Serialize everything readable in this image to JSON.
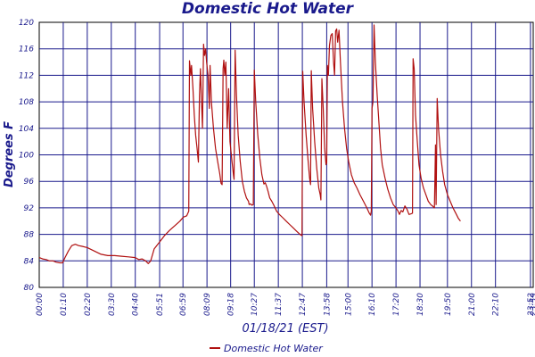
{
  "chart_data": {
    "type": "line",
    "title": "Domestic Hot Water",
    "xlabel": "01/18/21 (EST)",
    "ylabel": "Degrees F",
    "ylim": [
      80,
      120
    ],
    "yticks": [
      80,
      84,
      88,
      92,
      96,
      100,
      104,
      108,
      112,
      116,
      120
    ],
    "xlim": [
      0,
      1440
    ],
    "xticks": [
      {
        "t": 0,
        "label": "00:00"
      },
      {
        "t": 70,
        "label": "01:10"
      },
      {
        "t": 140,
        "label": "02:20"
      },
      {
        "t": 210,
        "label": "03:30"
      },
      {
        "t": 280,
        "label": "04:40"
      },
      {
        "t": 351,
        "label": "05:51"
      },
      {
        "t": 419,
        "label": "06:59"
      },
      {
        "t": 489,
        "label": "08:09"
      },
      {
        "t": 558,
        "label": "09:18"
      },
      {
        "t": 627,
        "label": "10:27"
      },
      {
        "t": 697,
        "label": "11:37"
      },
      {
        "t": 767,
        "label": "12:47"
      },
      {
        "t": 838,
        "label": "13:58"
      },
      {
        "t": 900,
        "label": "15:00"
      },
      {
        "t": 970,
        "label": "16:10"
      },
      {
        "t": 1040,
        "label": "17:20"
      },
      {
        "t": 1110,
        "label": "18:30"
      },
      {
        "t": 1190,
        "label": "19:50"
      },
      {
        "t": 1260,
        "label": "21:00"
      },
      {
        "t": 1330,
        "label": "22:10"
      },
      {
        "t": 1432,
        "label": "23:52"
      },
      {
        "t": 1440,
        "label": "23:59"
      }
    ],
    "grid": true,
    "legend": "bottom-center",
    "series": [
      {
        "name": "Domestic Hot Water",
        "color": "#b01010",
        "points": [
          [
            0,
            84.5
          ],
          [
            10,
            84.3
          ],
          [
            20,
            84.2
          ],
          [
            30,
            84.0
          ],
          [
            40,
            84.0
          ],
          [
            50,
            83.8
          ],
          [
            60,
            83.7
          ],
          [
            68,
            83.7
          ],
          [
            75,
            84.5
          ],
          [
            85,
            85.5
          ],
          [
            95,
            86.3
          ],
          [
            105,
            86.5
          ],
          [
            115,
            86.3
          ],
          [
            125,
            86.2
          ],
          [
            140,
            86.0
          ],
          [
            160,
            85.5
          ],
          [
            180,
            85.0
          ],
          [
            200,
            84.8
          ],
          [
            220,
            84.8
          ],
          [
            240,
            84.7
          ],
          [
            260,
            84.6
          ],
          [
            280,
            84.5
          ],
          [
            290,
            84.2
          ],
          [
            300,
            84.3
          ],
          [
            310,
            84.0
          ],
          [
            318,
            83.6
          ],
          [
            325,
            84.0
          ],
          [
            335,
            85.8
          ],
          [
            350,
            86.8
          ],
          [
            365,
            87.8
          ],
          [
            380,
            88.6
          ],
          [
            395,
            89.3
          ],
          [
            410,
            90.0
          ],
          [
            420,
            90.6
          ],
          [
            430,
            90.8
          ],
          [
            436,
            91.5
          ],
          [
            438,
            114.2
          ],
          [
            442,
            112.0
          ],
          [
            444,
            113.5
          ],
          [
            448,
            110.0
          ],
          [
            452,
            106.0
          ],
          [
            456,
            103.0
          ],
          [
            460,
            101.0
          ],
          [
            464,
            98.9
          ],
          [
            467,
            109.0
          ],
          [
            470,
            113.0
          ],
          [
            473,
            108.0
          ],
          [
            476,
            104.0
          ],
          [
            479,
            116.7
          ],
          [
            482,
            115.0
          ],
          [
            485,
            116.0
          ],
          [
            488,
            114.0
          ],
          [
            492,
            112.0
          ],
          [
            496,
            107.0
          ],
          [
            498,
            113.5
          ],
          [
            502,
            108.0
          ],
          [
            508,
            104.0
          ],
          [
            514,
            101.0
          ],
          [
            520,
            99.0
          ],
          [
            526,
            97.2
          ],
          [
            530,
            95.7
          ],
          [
            533,
            95.5
          ],
          [
            536,
            113.0
          ],
          [
            538,
            114.3
          ],
          [
            541,
            112.0
          ],
          [
            544,
            114.0
          ],
          [
            548,
            104.0
          ],
          [
            552,
            110.0
          ],
          [
            556,
            102.0
          ],
          [
            562,
            99.0
          ],
          [
            566,
            97.0
          ],
          [
            568,
            96.3
          ],
          [
            571,
            115.8
          ],
          [
            575,
            109.0
          ],
          [
            580,
            103.0
          ],
          [
            586,
            99.0
          ],
          [
            592,
            96.0
          ],
          [
            598,
            94.5
          ],
          [
            604,
            93.5
          ],
          [
            610,
            93.0
          ],
          [
            612,
            92.5
          ],
          [
            616,
            92.6
          ],
          [
            620,
            92.4
          ],
          [
            624,
            92.5
          ],
          [
            627,
            112.8
          ],
          [
            631,
            108.0
          ],
          [
            637,
            103.0
          ],
          [
            643,
            99.5
          ],
          [
            649,
            97.0
          ],
          [
            655,
            95.6
          ],
          [
            659,
            95.8
          ],
          [
            663,
            95.2
          ],
          [
            667,
            94.5
          ],
          [
            672,
            93.5
          ],
          [
            678,
            93.0
          ],
          [
            685,
            92.3
          ],
          [
            692,
            91.5
          ],
          [
            700,
            91.0
          ],
          [
            710,
            90.5
          ],
          [
            720,
            90.0
          ],
          [
            730,
            89.5
          ],
          [
            740,
            89.0
          ],
          [
            750,
            88.5
          ],
          [
            760,
            88.0
          ],
          [
            766,
            87.8
          ],
          [
            768,
            112.6
          ],
          [
            772,
            108.0
          ],
          [
            778,
            103.0
          ],
          [
            784,
            99.0
          ],
          [
            788,
            96.5
          ],
          [
            791,
            95.5
          ],
          [
            793,
            112.7
          ],
          [
            797,
            107.0
          ],
          [
            803,
            102.0
          ],
          [
            809,
            98.0
          ],
          [
            815,
            95.0
          ],
          [
            819,
            94.0
          ],
          [
            821,
            93.2
          ],
          [
            824,
            111.5
          ],
          [
            828,
            107.0
          ],
          [
            832,
            101.0
          ],
          [
            836,
            98.5
          ],
          [
            838,
            98.8
          ],
          [
            840,
            113.5
          ],
          [
            843,
            112.0
          ],
          [
            846,
            116.5
          ],
          [
            850,
            118.0
          ],
          [
            854,
            118.3
          ],
          [
            858,
            114.0
          ],
          [
            861,
            112.0
          ],
          [
            864,
            118.7
          ],
          [
            867,
            119.0
          ],
          [
            870,
            117.0
          ],
          [
            874,
            118.8
          ],
          [
            878,
            114.0
          ],
          [
            884,
            108.0
          ],
          [
            890,
            104.0
          ],
          [
            896,
            101.0
          ],
          [
            902,
            99.0
          ],
          [
            910,
            97.0
          ],
          [
            918,
            95.8
          ],
          [
            926,
            95.0
          ],
          [
            935,
            94.0
          ],
          [
            945,
            93.0
          ],
          [
            955,
            92.0
          ],
          [
            962,
            91.2
          ],
          [
            966,
            90.9
          ],
          [
            968,
            91.5
          ],
          [
            970,
            107.0
          ],
          [
            973,
            108.0
          ],
          [
            976,
            119.6
          ],
          [
            980,
            114.0
          ],
          [
            985,
            109.0
          ],
          [
            990,
            105.0
          ],
          [
            995,
            101.0
          ],
          [
            1000,
            98.5
          ],
          [
            1008,
            96.5
          ],
          [
            1016,
            94.8
          ],
          [
            1024,
            93.5
          ],
          [
            1032,
            92.5
          ],
          [
            1040,
            92.0
          ],
          [
            1046,
            91.5
          ],
          [
            1050,
            91.0
          ],
          [
            1055,
            91.6
          ],
          [
            1060,
            91.4
          ],
          [
            1066,
            92.3
          ],
          [
            1072,
            91.8
          ],
          [
            1078,
            91.0
          ],
          [
            1084,
            91.1
          ],
          [
            1088,
            91.2
          ],
          [
            1090,
            114.5
          ],
          [
            1093,
            113.0
          ],
          [
            1097,
            106.0
          ],
          [
            1102,
            102.0
          ],
          [
            1107,
            98.5
          ],
          [
            1113,
            96.5
          ],
          [
            1120,
            95.0
          ],
          [
            1127,
            94.0
          ],
          [
            1134,
            93.0
          ],
          [
            1141,
            92.5
          ],
          [
            1148,
            92.2
          ],
          [
            1152,
            92.0
          ],
          [
            1155,
            101.5
          ],
          [
            1157,
            92.5
          ],
          [
            1160,
            108.5
          ],
          [
            1164,
            104.0
          ],
          [
            1170,
            100.0
          ],
          [
            1176,
            97.5
          ],
          [
            1182,
            95.5
          ],
          [
            1190,
            94.0
          ],
          [
            1198,
            93.0
          ],
          [
            1206,
            92.0
          ],
          [
            1214,
            91.2
          ],
          [
            1222,
            90.4
          ],
          [
            1228,
            90.0
          ]
        ]
      }
    ]
  }
}
